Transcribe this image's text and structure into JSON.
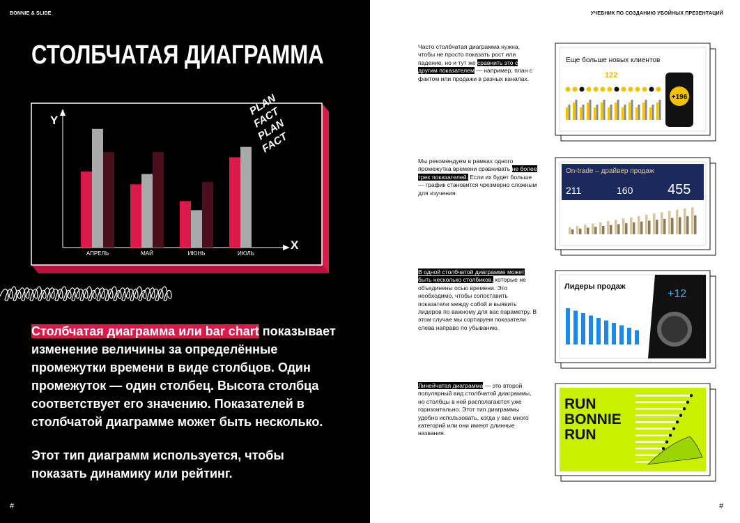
{
  "header": {
    "left": "BONNIE & SLIDE",
    "right": "УЧЕБНИК ПО СОЗДАНИЮ УБОЙНЫХ ПРЕЗЕНТАЦИЙ"
  },
  "title": "СТОЛБЧАТАЯ ДИАГРАММА",
  "chart": {
    "type": "bar",
    "y_label": "Y",
    "x_label": "X",
    "categories": [
      "АПРЕЛЬ",
      "МАЙ",
      "ИЮНЬ",
      "ИЮЛЬ"
    ],
    "series": [
      {
        "color": "#d81b4a",
        "values": [
          59,
          49,
          36,
          70
        ]
      },
      {
        "color": "#a9a9a9",
        "values": [
          92,
          57,
          29,
          78
        ]
      },
      {
        "color": "#4a0f1c",
        "values": [
          74,
          74,
          51,
          null
        ]
      }
    ],
    "ylim": [
      0,
      100
    ]
  },
  "sticker": [
    "PLAN",
    "FACT",
    "PLAN",
    "FACT"
  ],
  "intro": {
    "highlight": "Столбчатая диаграмма или bar chart",
    "tail": " показывает изменение величины за определённые промежутки времени в виде столбцов. Один промежуток — один столбец. Высота столбца соответствует его значению. Показателей в столбчатой диаграмме может быть несколько."
  },
  "outro": "Этот тип диаграмм используется, чтобы показать динамику или рейтинг.",
  "page_numbers": [
    "#",
    "#"
  ],
  "blocks": [
    {
      "lead": "Часто столбчатая диаграмма нужна, чтобы не просто показать рост или падение, но и тут же ",
      "highlight": "сравнить это с другим показателем",
      "tail": " — например, план с фактом или продажи в разных каналах."
    },
    {
      "lead": "Мы рекомендуем в рамках одного промежутка времени сравнивать ",
      "highlight": "не более трех показателей.",
      "tail": " Если их будет больше — график становится чрезмерно сложным для изучения."
    },
    {
      "highlight": "В одной столбчатой диаграмме может быть несколько столбиков,",
      "tail": " которые не объединены осью времени. Это необходимо, чтобы сопоставить показатели между собой и выявить лидеров по важному для вас параметру. В этом случае мы сортируем показатели слева направо по убыванию."
    },
    {
      "highlight": "Линейчатая диаграмма",
      "tail": " — это второй популярный вид столбчатой диаграммы, но столбцы в ней располагаются уже горизонтально. Этот тип диаграммы удобно использовать, когда у вас много категорий или они имеют длинные названия."
    }
  ],
  "thumbnails": [
    {
      "title": "Еще больше новых клиентов",
      "figures": [
        "122",
        "+196"
      ]
    },
    {
      "title": "On-trade – драйвер продаж",
      "figures": [
        "211",
        "160",
        "455"
      ]
    },
    {
      "title": "Лидеры продаж",
      "figures": [
        "+12"
      ]
    },
    {
      "title": [
        "RUN",
        "BONNIE",
        "RUN"
      ]
    }
  ]
}
